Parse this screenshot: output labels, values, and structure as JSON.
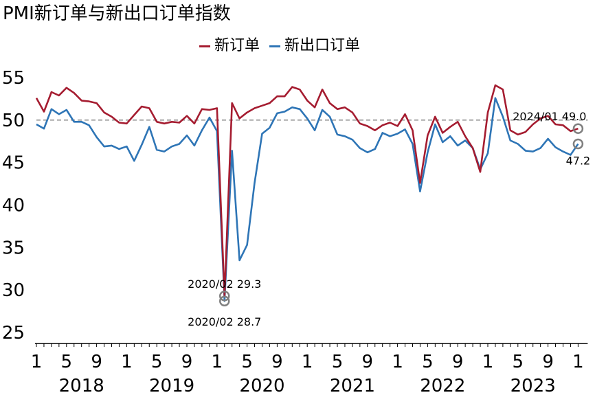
{
  "chart_data": {
    "type": "line",
    "title": "PMI新订单与新出口订单指数",
    "legend_position": "top",
    "ylim": [
      25,
      55
    ],
    "yticks": [
      "25",
      "30",
      "35",
      "40",
      "45",
      "50",
      "55"
    ],
    "reference_line": 50,
    "x_tick_labels": [
      {
        "i": 0,
        "label": "1"
      },
      {
        "i": 4,
        "label": "5"
      },
      {
        "i": 8,
        "label": "9"
      },
      {
        "i": 12,
        "label": "1"
      },
      {
        "i": 16,
        "label": "5"
      },
      {
        "i": 20,
        "label": "9"
      },
      {
        "i": 24,
        "label": "1"
      },
      {
        "i": 28,
        "label": "5"
      },
      {
        "i": 32,
        "label": "9"
      },
      {
        "i": 36,
        "label": "1"
      },
      {
        "i": 40,
        "label": "5"
      },
      {
        "i": 44,
        "label": "9"
      },
      {
        "i": 48,
        "label": "1"
      },
      {
        "i": 52,
        "label": "5"
      },
      {
        "i": 56,
        "label": "9"
      },
      {
        "i": 60,
        "label": "1"
      },
      {
        "i": 64,
        "label": "5"
      },
      {
        "i": 68,
        "label": "9"
      },
      {
        "i": 72,
        "label": "1"
      }
    ],
    "year_labels": [
      {
        "i": 6,
        "label": "2018"
      },
      {
        "i": 18,
        "label": "2019"
      },
      {
        "i": 30,
        "label": "2020"
      },
      {
        "i": 42,
        "label": "2021"
      },
      {
        "i": 54,
        "label": "2022"
      },
      {
        "i": 66,
        "label": "2023"
      }
    ],
    "series": [
      {
        "name": "新订单",
        "color": "#a51c30",
        "values": [
          52.6,
          51.0,
          53.3,
          52.9,
          53.8,
          53.2,
          52.3,
          52.2,
          52.0,
          50.9,
          50.4,
          49.7,
          49.6,
          50.6,
          51.6,
          51.4,
          49.8,
          49.6,
          49.8,
          49.7,
          50.5,
          49.6,
          51.3,
          51.2,
          51.4,
          29.3,
          52.0,
          50.2,
          50.9,
          51.4,
          51.7,
          52.0,
          52.8,
          52.8,
          53.9,
          53.6,
          52.3,
          51.5,
          53.6,
          52.0,
          51.3,
          51.5,
          50.9,
          49.6,
          49.3,
          48.8,
          49.4,
          49.7,
          49.3,
          50.7,
          48.8,
          42.6,
          48.2,
          50.4,
          48.5,
          49.2,
          49.8,
          48.1,
          46.7,
          43.9,
          50.9,
          54.1,
          53.6,
          48.8,
          48.3,
          48.6,
          49.5,
          50.2,
          50.5,
          49.5,
          49.4,
          48.7,
          49.0
        ]
      },
      {
        "name": "新出口订单",
        "color": "#2e75b6",
        "values": [
          49.5,
          49.0,
          51.3,
          50.7,
          51.2,
          49.8,
          49.8,
          49.4,
          48.0,
          46.9,
          47.0,
          46.6,
          46.9,
          45.2,
          47.1,
          49.2,
          46.5,
          46.3,
          46.9,
          47.2,
          48.2,
          47.0,
          48.8,
          50.3,
          48.7,
          28.7,
          46.4,
          33.5,
          35.3,
          42.6,
          48.4,
          49.1,
          50.8,
          51.0,
          51.5,
          51.3,
          50.2,
          48.8,
          51.2,
          50.4,
          48.3,
          48.1,
          47.7,
          46.7,
          46.2,
          46.6,
          48.5,
          48.1,
          48.4,
          48.9,
          47.2,
          41.6,
          46.2,
          49.5,
          47.4,
          48.1,
          47.0,
          47.6,
          46.7,
          44.2,
          46.1,
          52.6,
          50.4,
          47.6,
          47.2,
          46.4,
          46.3,
          46.7,
          47.8,
          46.8,
          46.3,
          45.9,
          47.2
        ]
      }
    ],
    "annotations": [
      {
        "series": 0,
        "i": 25,
        "text": "2020/02  29.3",
        "value": 29.3
      },
      {
        "series": 1,
        "i": 25,
        "text": "2020/02  28.7",
        "value": 28.7
      },
      {
        "series": 0,
        "i": 72,
        "text": "2024/01  49.0",
        "value": 49.0
      },
      {
        "series": 1,
        "i": 72,
        "text": "47.2",
        "value": 47.2
      }
    ]
  }
}
